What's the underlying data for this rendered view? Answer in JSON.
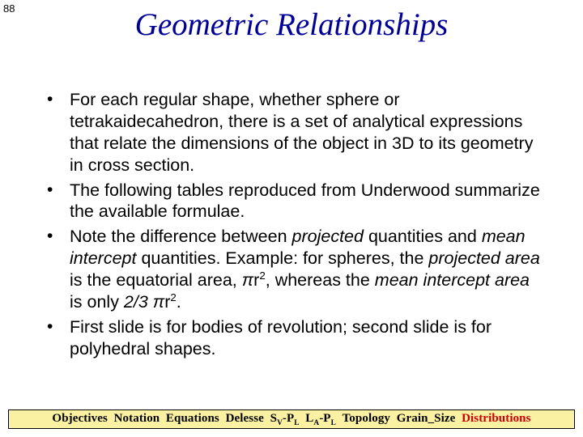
{
  "page_number": "88",
  "title": "Geometric Relationships",
  "title_color": "#000099",
  "body_fontsize": 21.5,
  "bullets": [
    {
      "html": "For each regular shape, whether sphere or tetrakaidecahedron, there is a set of analytical expressions that relate the dimensions of the object in 3D to its geometry in cross section."
    },
    {
      "html": "The following tables reproduced from Underwood summarize the available formulae."
    },
    {
      "html": "Note the difference between <span class=\"ital\">projected</span> quantities and <span class=\"ital\">mean intercept</span> quantities.  Example: for spheres, the <span class=\"ital\">projected area</span> is the equatorial area, <span class=\"ital\">π</span>r<span class=\"sup\">2</span>, whereas the <span class=\"ital\">mean intercept area</span> is only <span class=\"ital\">2/3 π</span>r<span class=\"sup\">2</span>."
    },
    {
      "html": "First slide is for bodies of revolution; second slide is for polyhedral shapes."
    }
  ],
  "footer": {
    "bg": "#faf1a3",
    "items": [
      {
        "text": "Objectives",
        "red": false
      },
      {
        "text": "Notation",
        "red": false
      },
      {
        "text": "Equations",
        "red": false
      },
      {
        "text": "Delesse",
        "red": false
      },
      {
        "html": "S<span class=\"sub\">V</span>-P<span class=\"sub\">L</span>",
        "red": false
      },
      {
        "html": "L<span class=\"sub\">A</span>-P<span class=\"sub\">L</span>",
        "red": false
      },
      {
        "text": "Topology",
        "red": false
      },
      {
        "text": "Grain_Size",
        "red": false
      },
      {
        "text": "Distributions",
        "red": true
      }
    ]
  }
}
